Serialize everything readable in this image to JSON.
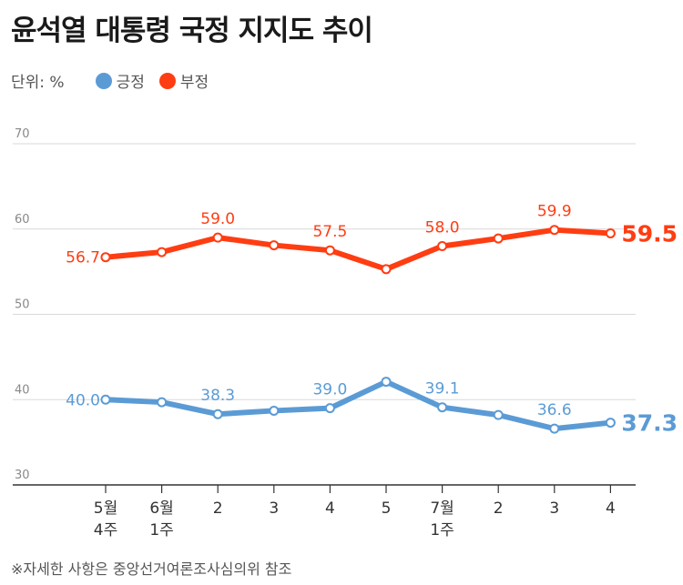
{
  "title": "윤석열 대통령 국정 지지도 추이",
  "unit": "단위: %",
  "note": "※자세한 사항은 중앙선거여론조사심의위 참조",
  "colors": {
    "positive": "#5b9bd5",
    "negative": "#ff3d12",
    "grid": "#d9d9d9",
    "axis": "#333333"
  },
  "chart_data": {
    "type": "line",
    "categories": [
      "5월\n4주",
      "6월\n1주",
      "2",
      "3",
      "4",
      "5",
      "7월\n1주",
      "2",
      "3",
      "4"
    ],
    "ylim": [
      30,
      70
    ],
    "yticks": [
      30,
      40,
      50,
      60,
      70
    ],
    "grid": true,
    "legend": "top-left",
    "series": [
      {
        "name": "긍정",
        "color": "#5b9bd5",
        "values": [
          40.0,
          39.7,
          38.3,
          38.7,
          39.0,
          42.1,
          39.1,
          38.2,
          36.6,
          37.3
        ],
        "labels": [
          "40.0",
          "",
          "38.3",
          "",
          "39.0",
          "",
          "39.1",
          "",
          "36.6",
          "37.3"
        ]
      },
      {
        "name": "부정",
        "color": "#ff3d12",
        "values": [
          56.7,
          57.3,
          59.0,
          58.1,
          57.5,
          55.3,
          58.0,
          58.9,
          59.9,
          59.5
        ],
        "labels": [
          "56.7",
          "",
          "59.0",
          "",
          "57.5",
          "",
          "58.0",
          "",
          "59.9",
          "59.5"
        ]
      }
    ]
  }
}
